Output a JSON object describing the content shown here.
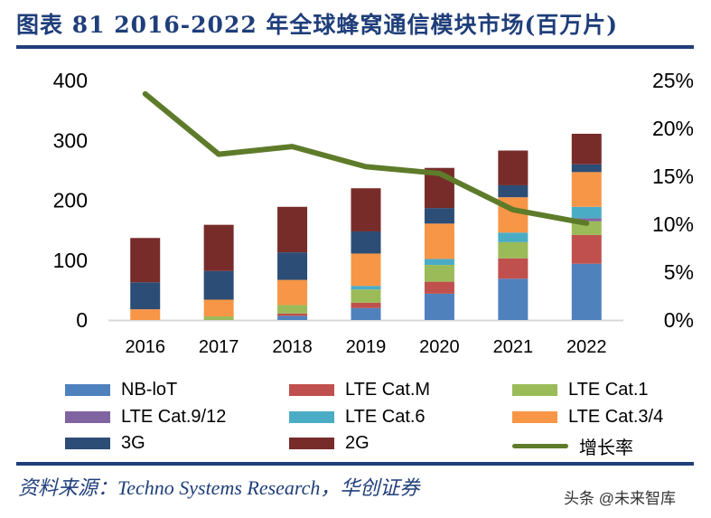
{
  "title": "图表 81   2016-2022 年全球蜂窝通信模块市场(百万片)",
  "source": "资料来源：Techno Systems Research，华创证券",
  "watermark": "头条 @未来智库",
  "chart_data": {
    "type": "bar",
    "stacked": true,
    "categories": [
      "2016",
      "2017",
      "2018",
      "2019",
      "2020",
      "2021",
      "2022"
    ],
    "left_axis": {
      "ylim": [
        0,
        400
      ],
      "ticks": [
        "0",
        "100",
        "200",
        "300",
        "400"
      ]
    },
    "right_axis": {
      "ylim": [
        0,
        25
      ],
      "ticks": [
        "0%",
        "5%",
        "10%",
        "15%",
        "20%",
        "25%"
      ]
    },
    "grid": false,
    "legend_position": "bottom",
    "series": [
      {
        "name": "NB-loT",
        "color": "#4F81BD",
        "values": [
          0,
          0,
          7,
          20,
          44,
          69,
          94
        ]
      },
      {
        "name": "LTE Cat.M",
        "color": "#C0504D",
        "values": [
          0,
          0,
          4,
          9,
          20,
          34,
          48
        ]
      },
      {
        "name": "LTE Cat.1",
        "color": "#9BBB59",
        "values": [
          0,
          6,
          14,
          22,
          28,
          27,
          23
        ]
      },
      {
        "name": "LTE Cat.9/12",
        "color": "#8064A2",
        "values": [
          0,
          0,
          0,
          0,
          0,
          0,
          5
        ]
      },
      {
        "name": "LTE Cat.6",
        "color": "#4BACC6",
        "values": [
          0,
          0,
          0,
          6,
          10,
          16,
          19
        ]
      },
      {
        "name": "LTE Cat.3/4",
        "color": "#F79646",
        "values": [
          18,
          28,
          42,
          54,
          59,
          59,
          58
        ]
      },
      {
        "name": "3G",
        "color": "#2C4D75",
        "values": [
          45,
          48,
          46,
          37,
          26,
          20,
          13
        ]
      },
      {
        "name": "2G",
        "color": "#772C2A",
        "values": [
          74,
          77,
          76,
          72,
          67,
          58,
          51
        ]
      }
    ],
    "line_series": {
      "name": "增长率",
      "color": "#5E7B2A",
      "axis": "right",
      "values": [
        23.6,
        17.3,
        18.1,
        16.0,
        15.3,
        11.5,
        10.1
      ]
    }
  }
}
